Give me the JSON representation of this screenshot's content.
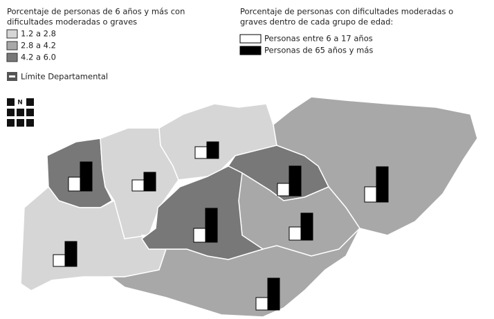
{
  "legend_left": {
    "title_lines": [
      "Porcentaje de personas de 6 años y más con",
      "dificultades moderadas o graves"
    ],
    "classes": [
      {
        "label": "1.2 a 2.8",
        "color": "#d6d6d6"
      },
      {
        "label": "2.8 a 4.2",
        "color": "#a8a8a8"
      },
      {
        "label": "4.2 a 6.0",
        "color": "#787878"
      }
    ],
    "boundary": "Límite Departamental"
  },
  "legend_right": {
    "title_lines": [
      "Porcentaje de personas con dificultades moderadas o",
      "graves dentro de cada grupo de edad:"
    ],
    "series": [
      {
        "name": "Personas entre 6 a 17 años",
        "color": "#ffffff"
      },
      {
        "name": "Personas de 65 años y más",
        "color": "#000000"
      }
    ]
  },
  "north": "N",
  "regions": [
    {
      "class": 2,
      "values": [
        20,
        42
      ]
    },
    {
      "class": 0,
      "values": [
        16,
        27
      ]
    },
    {
      "class": 0,
      "values": [
        17,
        24
      ]
    },
    {
      "class": 2,
      "values": [
        18,
        43
      ]
    },
    {
      "class": 1,
      "values": [
        22,
        51
      ]
    },
    {
      "class": 2,
      "values": [
        20,
        49
      ]
    },
    {
      "class": 1,
      "values": [
        19,
        39
      ]
    },
    {
      "class": 0,
      "values": [
        17,
        36
      ]
    },
    {
      "class": 1,
      "values": [
        18,
        46
      ]
    }
  ]
}
